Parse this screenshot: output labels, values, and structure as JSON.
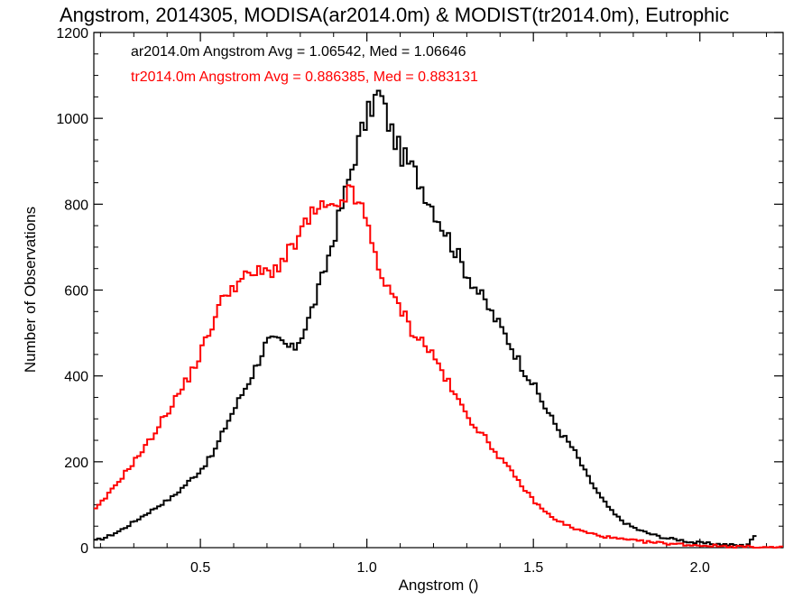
{
  "chart_data": {
    "type": "histogram",
    "title": "Angstrom, 2014305, MODISA(ar2014.0m) & MODIST(tr2014.0m), Eutrophic",
    "xlabel": "Angstrom ()",
    "ylabel": "Number of Observations",
    "xlim": [
      0.18,
      2.25
    ],
    "ylim": [
      0,
      1200
    ],
    "xticks": [
      0.5,
      1.0,
      1.5,
      2.0
    ],
    "xtick_labels": [
      "0.5",
      "1.0",
      "1.5",
      "2.0"
    ],
    "yticks": [
      0,
      200,
      400,
      600,
      800,
      1000,
      1200
    ],
    "ytick_labels": [
      "0",
      "200",
      "400",
      "600",
      "800",
      "1000",
      "1200"
    ],
    "grid": false,
    "legend": "annotations top-left",
    "series": [
      {
        "name": "ar2014.0m",
        "color": "#000000",
        "annotation": "ar2014.0m Angstrom Avg = 1.06542, Med = 1.06646",
        "x": [
          0.18,
          0.22,
          0.26,
          0.3,
          0.34,
          0.38,
          0.42,
          0.46,
          0.5,
          0.54,
          0.58,
          0.62,
          0.66,
          0.7,
          0.74,
          0.78,
          0.82,
          0.86,
          0.9,
          0.94,
          0.98,
          1.02,
          1.04,
          1.06,
          1.1,
          1.14,
          1.18,
          1.22,
          1.26,
          1.3,
          1.34,
          1.38,
          1.42,
          1.46,
          1.5,
          1.54,
          1.58,
          1.62,
          1.66,
          1.7,
          1.74,
          1.78,
          1.82,
          1.86,
          1.9,
          1.94,
          1.98,
          2.02,
          2.06,
          2.1,
          2.14,
          2.16
        ],
        "y": [
          15,
          25,
          40,
          60,
          80,
          100,
          120,
          150,
          180,
          220,
          290,
          350,
          410,
          480,
          480,
          460,
          520,
          610,
          720,
          840,
          960,
          1040,
          1060,
          1000,
          920,
          880,
          820,
          760,
          700,
          640,
          590,
          540,
          490,
          430,
          380,
          320,
          270,
          230,
          170,
          120,
          80,
          55,
          40,
          30,
          22,
          18,
          12,
          10,
          8,
          6,
          4,
          25
        ]
      },
      {
        "name": "tr2014.0m",
        "color": "#ff0000",
        "annotation": "tr2014.0m Angstrom Avg = 0.886385, Med = 0.883131",
        "x": [
          0.18,
          0.22,
          0.26,
          0.3,
          0.34,
          0.38,
          0.42,
          0.46,
          0.5,
          0.54,
          0.58,
          0.62,
          0.66,
          0.7,
          0.74,
          0.78,
          0.82,
          0.86,
          0.9,
          0.94,
          0.98,
          1.02,
          1.06,
          1.1,
          1.14,
          1.18,
          1.22,
          1.26,
          1.3,
          1.34,
          1.38,
          1.42,
          1.46,
          1.5,
          1.54,
          1.58,
          1.62,
          1.66,
          1.7,
          1.74,
          1.78,
          1.82,
          1.86,
          1.9,
          1.94,
          1.98,
          2.02,
          2.06,
          2.1,
          2.14,
          2.18,
          2.25
        ],
        "y": [
          85,
          120,
          160,
          200,
          240,
          290,
          340,
          390,
          450,
          530,
          600,
          620,
          640,
          640,
          660,
          700,
          760,
          790,
          780,
          830,
          800,
          700,
          600,
          560,
          500,
          470,
          420,
          360,
          310,
          270,
          230,
          190,
          150,
          110,
          80,
          60,
          45,
          35,
          28,
          22,
          18,
          15,
          12,
          10,
          8,
          6,
          5,
          4,
          3,
          2,
          1,
          0
        ]
      }
    ]
  }
}
